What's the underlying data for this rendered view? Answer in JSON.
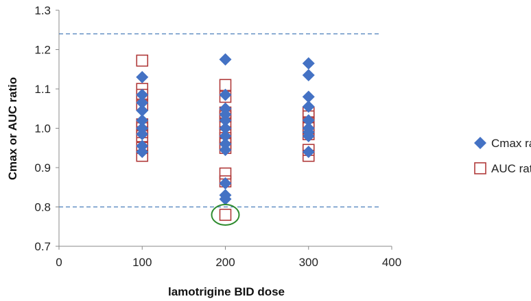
{
  "chart_data": {
    "type": "scatter",
    "title": "",
    "xlabel": "lamotrigine BID dose",
    "ylabel": "Cmax or AUC ratio",
    "xlim": [
      0,
      400
    ],
    "ylim": [
      0.7,
      1.3
    ],
    "xticks": [
      "0",
      "100",
      "200",
      "300",
      "400"
    ],
    "yticks": [
      "0.7",
      "0.8",
      "0.9",
      "1.0",
      "1.1",
      "1.2",
      "1.3"
    ],
    "grid": false,
    "legend_position": "right",
    "reference_lines": [
      1.24,
      0.8
    ],
    "annotation": {
      "type": "ellipse",
      "x": 200,
      "y": 0.78,
      "color": "#2e8b2e"
    },
    "series": [
      {
        "name": "Cmax ratio",
        "marker": "diamond",
        "color": "#4472c4",
        "points": [
          [
            100,
            1.13
          ],
          [
            100,
            1.085
          ],
          [
            100,
            1.065
          ],
          [
            100,
            1.045
          ],
          [
            100,
            1.02
          ],
          [
            100,
            1.0
          ],
          [
            100,
            0.985
          ],
          [
            100,
            0.955
          ],
          [
            100,
            0.94
          ],
          [
            200,
            1.175
          ],
          [
            200,
            1.085
          ],
          [
            200,
            1.05
          ],
          [
            200,
            1.035
          ],
          [
            200,
            1.02
          ],
          [
            200,
            1.0
          ],
          [
            200,
            0.98
          ],
          [
            200,
            0.96
          ],
          [
            200,
            0.945
          ],
          [
            200,
            0.86
          ],
          [
            200,
            0.83
          ],
          [
            200,
            0.82
          ],
          [
            300,
            1.165
          ],
          [
            300,
            1.135
          ],
          [
            300,
            1.08
          ],
          [
            300,
            1.055
          ],
          [
            300,
            1.02
          ],
          [
            300,
            1.0
          ],
          [
            300,
            0.99
          ],
          [
            300,
            0.98
          ],
          [
            300,
            0.94
          ]
        ]
      },
      {
        "name": "AUC ratio",
        "marker": "square-open",
        "color": "#b03a3a",
        "points": [
          [
            100,
            1.172
          ],
          [
            100,
            1.1
          ],
          [
            100,
            1.085
          ],
          [
            100,
            1.06
          ],
          [
            100,
            1.01
          ],
          [
            100,
            1.0
          ],
          [
            100,
            0.99
          ],
          [
            100,
            0.98
          ],
          [
            100,
            0.95
          ],
          [
            100,
            0.93
          ],
          [
            200,
            1.11
          ],
          [
            200,
            1.08
          ],
          [
            200,
            1.04
          ],
          [
            200,
            1.03
          ],
          [
            200,
            1.01
          ],
          [
            200,
            0.99
          ],
          [
            200,
            0.975
          ],
          [
            200,
            0.96
          ],
          [
            200,
            0.95
          ],
          [
            200,
            0.885
          ],
          [
            200,
            0.865
          ],
          [
            200,
            0.78
          ],
          [
            300,
            1.04
          ],
          [
            300,
            1.03
          ],
          [
            300,
            1.015
          ],
          [
            300,
            1.0
          ],
          [
            300,
            0.985
          ],
          [
            300,
            0.945
          ],
          [
            300,
            0.93
          ]
        ]
      }
    ]
  }
}
